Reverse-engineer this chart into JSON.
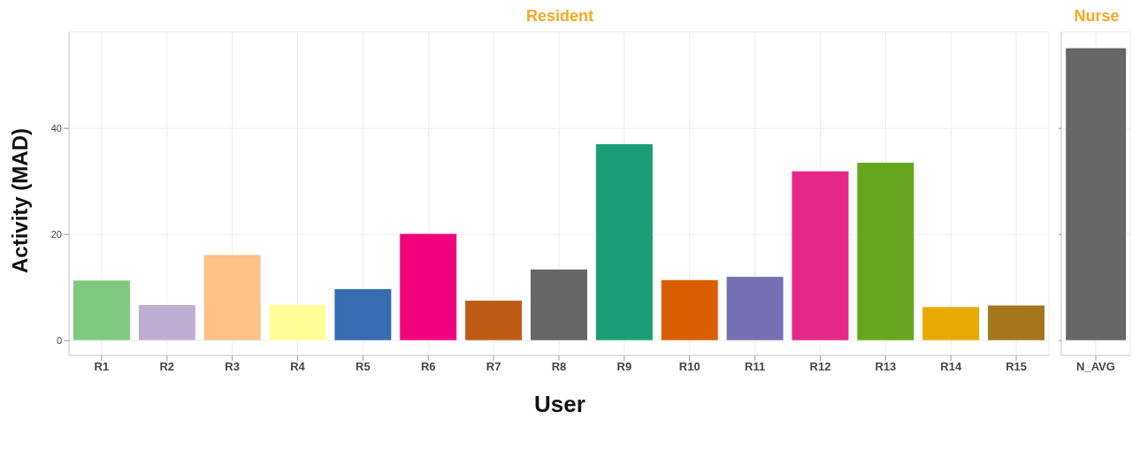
{
  "chart_data": [
    {
      "type": "bar",
      "title": "Resident",
      "xlabel": "User",
      "ylabel": "Activity (MAD)",
      "categories": [
        "R1",
        "R2",
        "R3",
        "R4",
        "R5",
        "R6",
        "R7",
        "R8",
        "R9",
        "R10",
        "R11",
        "R12",
        "R13",
        "R14",
        "R15"
      ],
      "values": [
        11.4,
        6.8,
        16.2,
        6.8,
        9.8,
        20.2,
        7.6,
        13.5,
        37.1,
        11.5,
        12.1,
        32.0,
        33.6,
        6.4,
        6.7
      ],
      "colors": [
        "#7fc97f",
        "#beaed4",
        "#fdc086",
        "#ffff99",
        "#386cb0",
        "#f0027f",
        "#bf5b17",
        "#666666",
        "#1b9e77",
        "#d95f02",
        "#7570b3",
        "#e7298a",
        "#66a61e",
        "#e6ab02",
        "#a6761d"
      ],
      "ylim": [
        -2.8,
        58.2
      ],
      "yticks": [
        0,
        20,
        40
      ],
      "grid": true,
      "legend": false
    },
    {
      "type": "bar",
      "title": "Nurse",
      "categories": [
        "N_AVG"
      ],
      "values": [
        55.2
      ],
      "colors": [
        "#666666"
      ],
      "ylim": [
        -2.8,
        58.2
      ],
      "yticks": [
        0,
        20,
        40
      ],
      "grid": true,
      "legend": false,
      "tick_labels": "x"
    }
  ]
}
